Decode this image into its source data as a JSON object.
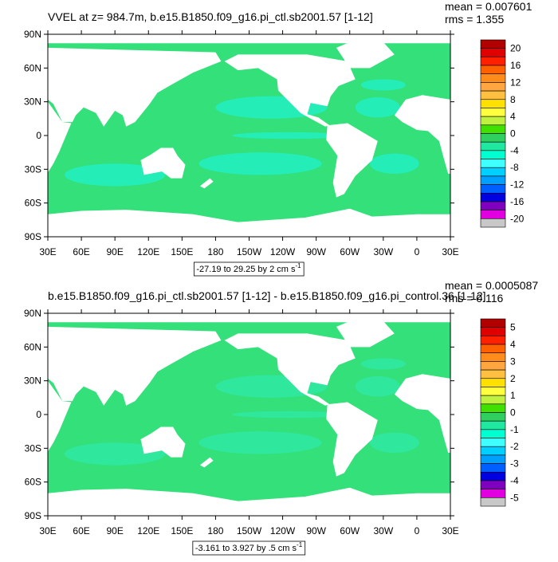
{
  "panels": [
    {
      "title": "VVEL at z= 984.7m, b.e15.B1850.f09_g16.pi_ctl.sb2001.57 [1-12]",
      "mean": "mean = 0.007601",
      "rms": "rms = 1.355",
      "yticks": [
        "90N",
        "60N",
        "30N",
        "0",
        "30S",
        "60S",
        "90S"
      ],
      "xticks": [
        "30E",
        "60E",
        "90E",
        "120E",
        "150E",
        "180",
        "150W",
        "120W",
        "90W",
        "60W",
        "30W",
        "0",
        "30E"
      ],
      "colorbar_labels": [
        "20",
        "16",
        "12",
        "8",
        "4",
        "0",
        "-4",
        "-8",
        "-12",
        "-16",
        "-20"
      ],
      "range_label": {
        "text": "-27.19 to 29.25 by 2 cm s",
        "exponent": "-1"
      }
    },
    {
      "title": "b.e15.B1850.f09_g16.pi_ctl.sb2001.57 [1-12] - b.e15.B1850.f09_g16.pi_control.36 [1-12]",
      "mean": "mean = 0.0005087",
      "rms": "rms = 0.116",
      "yticks": [
        "90N",
        "60N",
        "30N",
        "0",
        "30S",
        "60S",
        "90S"
      ],
      "xticks": [
        "30E",
        "60E",
        "90E",
        "120E",
        "150E",
        "180",
        "150W",
        "120W",
        "90W",
        "60W",
        "30W",
        "0",
        "30E"
      ],
      "colorbar_labels": [
        "5",
        "4",
        "3",
        "2",
        "1",
        "0",
        "-1",
        "-2",
        "-3",
        "-4",
        "-5"
      ],
      "range_label": {
        "text": "-3.161 to 3.927 by .5 cm s",
        "exponent": "-1"
      }
    }
  ],
  "colorbar_colors": [
    "#b00000",
    "#e00000",
    "#ff2000",
    "#ff6000",
    "#ff8c1a",
    "#ffa640",
    "#ffbf40",
    "#ffe000",
    "#ffff40",
    "#c0f040",
    "#40e000",
    "#30d060",
    "#20e8a0",
    "#00ffd0",
    "#40ffff",
    "#00d0ff",
    "#00a0ff",
    "#0060ff",
    "#0000e0",
    "#8000c0",
    "#e000e0",
    "#c8c8c8"
  ]
}
